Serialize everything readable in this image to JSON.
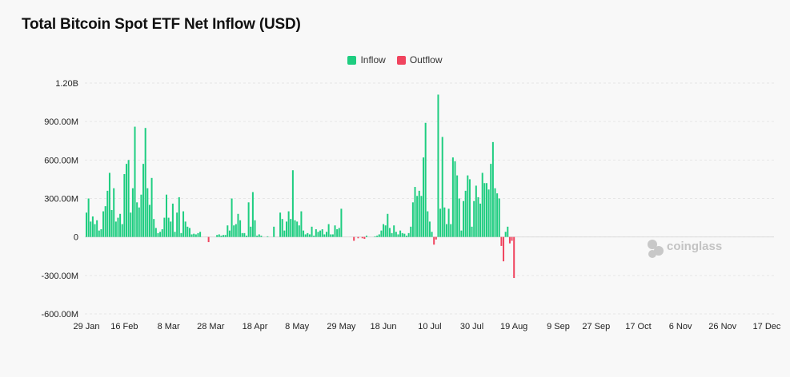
{
  "title": "Total Bitcoin Spot ETF Net Inflow (USD)",
  "legend": {
    "inflow": {
      "label": "Inflow",
      "color": "#1ecd80"
    },
    "outflow": {
      "label": "Outflow",
      "color": "#f0445e"
    }
  },
  "watermark": "coinglass",
  "chart_data": {
    "type": "bar",
    "title": "Total Bitcoin Spot ETF Net Inflow (USD)",
    "ylim": [
      -600000000,
      1200000000
    ],
    "y_ticks": [
      {
        "value": 1200000000,
        "label": "1.20B"
      },
      {
        "value": 900000000,
        "label": "900.00M"
      },
      {
        "value": 600000000,
        "label": "600.00M"
      },
      {
        "value": 300000000,
        "label": "300.00M"
      },
      {
        "value": 0,
        "label": "0"
      },
      {
        "value": -300000000,
        "label": "-300.00M"
      },
      {
        "value": -600000000,
        "label": "-600.00M"
      }
    ],
    "x_start": "29 Jan",
    "x_end": "24 Dec",
    "x_ticks": [
      {
        "date": "29 Jan",
        "day_index": 0
      },
      {
        "date": "16 Feb",
        "day_index": 18
      },
      {
        "date": "8 Mar",
        "day_index": 39
      },
      {
        "date": "28 Mar",
        "day_index": 59
      },
      {
        "date": "18 Apr",
        "day_index": 80
      },
      {
        "date": "8 May",
        "day_index": 100
      },
      {
        "date": "29 May",
        "day_index": 121
      },
      {
        "date": "18 Jun",
        "day_index": 141
      },
      {
        "date": "10 Jul",
        "day_index": 163
      },
      {
        "date": "30 Jul",
        "day_index": 183
      },
      {
        "date": "19 Aug",
        "day_index": 203
      },
      {
        "date": "9 Sep",
        "day_index": 224
      },
      {
        "date": "27 Sep",
        "day_index": 242
      },
      {
        "date": "17 Oct",
        "day_index": 262
      },
      {
        "date": "6 Nov",
        "day_index": 282
      },
      {
        "date": "26 Nov",
        "day_index": 302
      },
      {
        "date": "17 Dec",
        "day_index": 323
      }
    ],
    "daily_flows_millions": [
      [
        0,
        190
      ],
      [
        1,
        300
      ],
      [
        2,
        120
      ],
      [
        3,
        160
      ],
      [
        4,
        100
      ],
      [
        5,
        130
      ],
      [
        6,
        50
      ],
      [
        7,
        60
      ],
      [
        8,
        200
      ],
      [
        9,
        240
      ],
      [
        10,
        360
      ],
      [
        11,
        500
      ],
      [
        12,
        210
      ],
      [
        13,
        380
      ],
      [
        14,
        120
      ],
      [
        15,
        150
      ],
      [
        16,
        180
      ],
      [
        17,
        100
      ],
      [
        18,
        490
      ],
      [
        19,
        570
      ],
      [
        20,
        600
      ],
      [
        21,
        190
      ],
      [
        22,
        380
      ],
      [
        23,
        860
      ],
      [
        24,
        270
      ],
      [
        25,
        230
      ],
      [
        26,
        330
      ],
      [
        27,
        570
      ],
      [
        28,
        850
      ],
      [
        29,
        380
      ],
      [
        30,
        250
      ],
      [
        31,
        460
      ],
      [
        32,
        140
      ],
      [
        33,
        70
      ],
      [
        34,
        30
      ],
      [
        35,
        40
      ],
      [
        36,
        60
      ],
      [
        37,
        150
      ],
      [
        38,
        330
      ],
      [
        39,
        150
      ],
      [
        40,
        120
      ],
      [
        41,
        260
      ],
      [
        42,
        40
      ],
      [
        43,
        190
      ],
      [
        44,
        310
      ],
      [
        45,
        30
      ],
      [
        46,
        200
      ],
      [
        47,
        120
      ],
      [
        48,
        80
      ],
      [
        49,
        70
      ],
      [
        50,
        20
      ],
      [
        51,
        25
      ],
      [
        52,
        20
      ],
      [
        53,
        30
      ],
      [
        54,
        40
      ],
      [
        58,
        -40
      ],
      [
        62,
        15
      ],
      [
        63,
        20
      ],
      [
        64,
        10
      ],
      [
        65,
        15
      ],
      [
        66,
        15
      ],
      [
        67,
        90
      ],
      [
        68,
        50
      ],
      [
        69,
        300
      ],
      [
        70,
        90
      ],
      [
        71,
        100
      ],
      [
        72,
        180
      ],
      [
        73,
        130
      ],
      [
        74,
        30
      ],
      [
        75,
        30
      ],
      [
        76,
        10
      ],
      [
        77,
        270
      ],
      [
        78,
        80
      ],
      [
        79,
        350
      ],
      [
        80,
        130
      ],
      [
        81,
        10
      ],
      [
        82,
        20
      ],
      [
        83,
        10
      ],
      [
        86,
        5
      ],
      [
        89,
        80
      ],
      [
        92,
        190
      ],
      [
        93,
        140
      ],
      [
        94,
        50
      ],
      [
        95,
        120
      ],
      [
        96,
        200
      ],
      [
        97,
        140
      ],
      [
        98,
        520
      ],
      [
        99,
        130
      ],
      [
        100,
        120
      ],
      [
        101,
        90
      ],
      [
        102,
        200
      ],
      [
        103,
        50
      ],
      [
        104,
        20
      ],
      [
        105,
        30
      ],
      [
        106,
        20
      ],
      [
        107,
        80
      ],
      [
        108,
        10
      ],
      [
        109,
        60
      ],
      [
        110,
        40
      ],
      [
        111,
        50
      ],
      [
        112,
        60
      ],
      [
        113,
        20
      ],
      [
        114,
        40
      ],
      [
        115,
        100
      ],
      [
        116,
        20
      ],
      [
        117,
        20
      ],
      [
        118,
        90
      ],
      [
        119,
        60
      ],
      [
        120,
        70
      ],
      [
        121,
        220
      ],
      [
        127,
        -30
      ],
      [
        129,
        -10
      ],
      [
        131,
        -10
      ],
      [
        132,
        -15
      ],
      [
        133,
        10
      ],
      [
        137,
        5
      ],
      [
        138,
        10
      ],
      [
        139,
        20
      ],
      [
        140,
        50
      ],
      [
        141,
        100
      ],
      [
        142,
        90
      ],
      [
        143,
        180
      ],
      [
        144,
        70
      ],
      [
        145,
        30
      ],
      [
        146,
        90
      ],
      [
        147,
        40
      ],
      [
        148,
        20
      ],
      [
        149,
        50
      ],
      [
        150,
        30
      ],
      [
        151,
        25
      ],
      [
        152,
        10
      ],
      [
        153,
        30
      ],
      [
        154,
        80
      ],
      [
        155,
        270
      ],
      [
        156,
        390
      ],
      [
        157,
        320
      ],
      [
        158,
        360
      ],
      [
        159,
        320
      ],
      [
        160,
        620
      ],
      [
        161,
        890
      ],
      [
        162,
        200
      ],
      [
        163,
        120
      ],
      [
        164,
        40
      ],
      [
        165,
        -60
      ],
      [
        166,
        -20
      ],
      [
        167,
        1110
      ],
      [
        168,
        220
      ],
      [
        169,
        780
      ],
      [
        170,
        230
      ],
      [
        171,
        100
      ],
      [
        172,
        220
      ],
      [
        173,
        100
      ],
      [
        174,
        620
      ],
      [
        175,
        590
      ],
      [
        176,
        480
      ],
      [
        177,
        300
      ],
      [
        178,
        50
      ],
      [
        179,
        280
      ],
      [
        180,
        360
      ],
      [
        181,
        480
      ],
      [
        182,
        450
      ],
      [
        183,
        80
      ],
      [
        184,
        280
      ],
      [
        185,
        400
      ],
      [
        186,
        310
      ],
      [
        187,
        260
      ],
      [
        188,
        500
      ],
      [
        189,
        420
      ],
      [
        190,
        420
      ],
      [
        191,
        370
      ],
      [
        192,
        570
      ],
      [
        193,
        740
      ],
      [
        194,
        380
      ],
      [
        195,
        340
      ],
      [
        196,
        300
      ],
      [
        197,
        -70
      ],
      [
        198,
        -190
      ],
      [
        199,
        40
      ],
      [
        200,
        80
      ],
      [
        201,
        -50
      ],
      [
        202,
        -30
      ],
      [
        203,
        -320
      ]
    ]
  }
}
